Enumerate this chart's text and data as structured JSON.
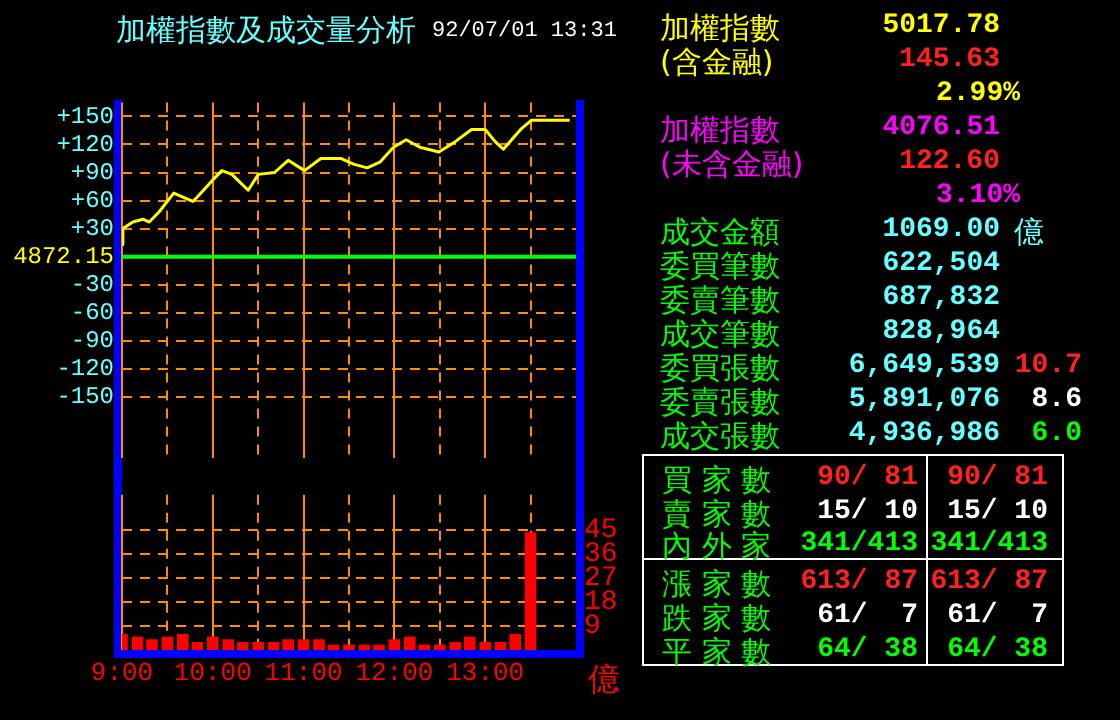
{
  "chart_data": [
    {
      "type": "line",
      "title": "加權指數及成交量分析",
      "subtitle": "92/07/01 13:31",
      "xlim": [
        9,
        14
      ],
      "ylim": [
        -215,
        165
      ],
      "xticks": [
        9,
        9.5,
        10,
        10.5,
        11,
        11.5,
        12,
        12.5,
        13,
        13.5
      ],
      "yticks": [
        {
          "value": 150,
          "label": "+150"
        },
        {
          "value": 120,
          "label": "+120"
        },
        {
          "value": 90,
          "label": "+90"
        },
        {
          "value": 60,
          "label": "+60"
        },
        {
          "value": 30,
          "label": "+30"
        },
        -30,
        -60,
        -90,
        -120,
        -150
      ],
      "tick_labels": "y",
      "grid": true,
      "ref_lines": [
        {
          "axis": "y",
          "value": 0,
          "color": "#00ff00"
        }
      ],
      "annotations": [
        "4872.15"
      ],
      "series": [
        {
          "color": "#ffff00",
          "x": [
            9,
            9.01,
            9.12,
            9.23,
            9.3,
            9.41,
            9.57,
            9.78,
            9.86,
            9.99,
            10.1,
            10.21,
            10.39,
            10.5,
            10.68,
            10.83,
            11.01,
            11.19,
            11.41,
            11.55,
            11.7,
            11.84,
            11.99,
            12.13,
            12.28,
            12.49,
            12.67,
            12.85,
            13,
            13.11,
            13.2,
            13.4,
            13.51,
            13.93
          ],
          "values": [
            13,
            30,
            37,
            40,
            37,
            48,
            68,
            59,
            67,
            81,
            92,
            88,
            71,
            88,
            90,
            103,
            92,
            105,
            105,
            99,
            95,
            101,
            117,
            125,
            117,
            112,
            123,
            136,
            136,
            123,
            115,
            137,
            146,
            146
          ]
        }
      ]
    },
    {
      "type": "bar",
      "xlim": [
        9,
        14
      ],
      "ylim": [
        0,
        58
      ],
      "ylabel": "億",
      "xticks": [
        {
          "value": 9,
          "label": "9:00"
        },
        {
          "value": 9.5,
          "label": null
        },
        {
          "value": 10,
          "label": "10:00"
        },
        {
          "value": 10.5,
          "label": null
        },
        {
          "value": 11,
          "label": "11:00"
        },
        {
          "value": 11.5,
          "label": null
        },
        {
          "value": 12,
          "label": "12:00"
        },
        {
          "value": 12.5,
          "label": null
        },
        {
          "value": 13,
          "label": "13:00"
        },
        {
          "value": 13.5,
          "label": null
        }
      ],
      "yticks": [
        9,
        18,
        27,
        36,
        45
      ],
      "grid": true,
      "series": [
        {
          "color": "#ff0000",
          "x": [
            9,
            9.17,
            9.33,
            9.5,
            9.67,
            9.83,
            10,
            10.17,
            10.33,
            10.5,
            10.67,
            10.83,
            11,
            11.17,
            11.33,
            11.5,
            11.67,
            11.83,
            12,
            12.17,
            12.33,
            12.5,
            12.67,
            12.83,
            13,
            13.17,
            13.33,
            13.5
          ],
          "values": [
            6,
            5,
            4,
            5,
            6,
            3,
            5,
            4,
            3,
            3,
            3,
            4,
            4,
            4,
            2,
            2,
            2,
            2,
            4,
            5,
            2,
            2,
            3,
            5,
            3,
            3,
            6,
            44
          ]
        }
      ]
    },
    {
      "type": "other",
      "annotations": [
        "加權指數",
        "5017.78",
        "(含金融)",
        "145.63",
        "2.99%",
        "加權指數",
        "4076.51",
        "(未含金融)",
        "122.60",
        "3.10%",
        "成交金額",
        "1069.00",
        "億",
        "委買筆數",
        "622,504",
        "委賣筆數",
        "687,832",
        "成交筆數",
        "828,964",
        "委買張數",
        "6,649,539",
        "10.7",
        "委賣張數",
        "5,891,076",
        "8.6",
        "成交張數",
        "4,936,986",
        "6.0",
        "買 家 數",
        "90/ 81",
        "90/ 81",
        "賣 家 數",
        "15/ 10",
        "15/ 10",
        "內 外 家",
        "341/413",
        "341/413",
        "漲 家 數",
        "613/ 87",
        "613/ 87",
        "跌 家 數",
        "61/  7",
        "61/  7",
        "平 家 數",
        "64/ 38",
        "64/ 38"
      ]
    }
  ]
}
